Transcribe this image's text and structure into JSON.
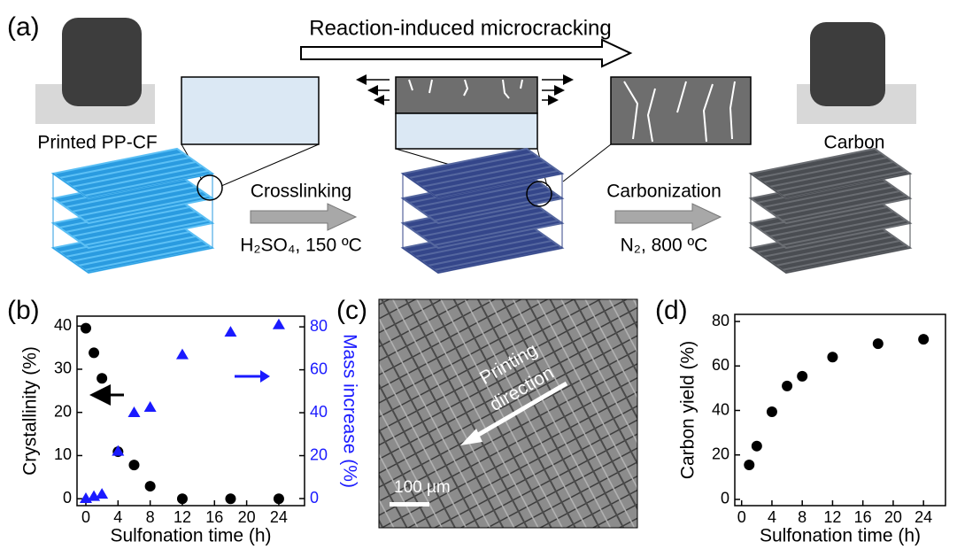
{
  "panel_a": {
    "label": "(a)",
    "top_arrow_text": "Reaction-induced microcracking",
    "left_photo_caption": "Printed PP-CF",
    "right_photo_caption": "Carbon",
    "step1_text": "Crosslinking",
    "step1_condition": "H₂SO₄, 150 ºC",
    "step2_text": "Carbonization",
    "step2_condition": "N₂, 800 ºC"
  },
  "panel_c": {
    "label": "(c)",
    "direction_text": [
      "Printing",
      "direction"
    ],
    "scale_bar": "100 µm"
  },
  "chart_data": [
    {
      "type": "scatter",
      "label": "(b)",
      "x_label": "Sulfonation time (h)",
      "y_label": "Crystallinity (%)",
      "y2_label": "Mass increase (%)",
      "x": [
        0,
        1,
        2,
        4,
        6,
        8,
        12,
        18,
        24
      ],
      "xlim": [
        -1.1,
        27.2
      ],
      "xticks": [
        0,
        4,
        8,
        12,
        16,
        20,
        24
      ],
      "ylim": [
        -1.6,
        42.3
      ],
      "yticks": [
        0,
        10,
        20,
        30,
        40
      ],
      "y2lim": [
        -3.3,
        85
      ],
      "y2ticks": [
        0,
        20,
        40,
        60,
        80
      ],
      "y2_color": "#1a1aff",
      "series": [
        {
          "color": "#000000",
          "marker": "circle",
          "values": [
            39.5,
            33.8,
            27.9,
            10.9,
            7.8,
            2.9,
            0,
            0,
            0
          ]
        },
        {
          "color": "#1a1aff",
          "marker": "triangle",
          "axis": "y2",
          "values": [
            0,
            1,
            2,
            22,
            40,
            42.5,
            67,
            77.5,
            81
          ]
        }
      ]
    },
    {
      "type": "scatter",
      "label": "(d)",
      "x_label": "Sulfonation time (h)",
      "y_label": "Carbon yield (%)",
      "x": [
        1,
        2,
        4,
        6,
        8,
        12,
        18,
        24
      ],
      "xlim": [
        -0.9,
        26.9
      ],
      "xticks": [
        0,
        4,
        8,
        12,
        16,
        20,
        24
      ],
      "ylim": [
        -2.8,
        83.2
      ],
      "yticks": [
        0,
        20,
        40,
        60,
        80
      ],
      "series": [
        {
          "color": "#000000",
          "marker": "circle",
          "values": [
            15.5,
            24,
            39.4,
            51,
            55.4,
            64,
            70,
            72
          ]
        }
      ]
    }
  ]
}
